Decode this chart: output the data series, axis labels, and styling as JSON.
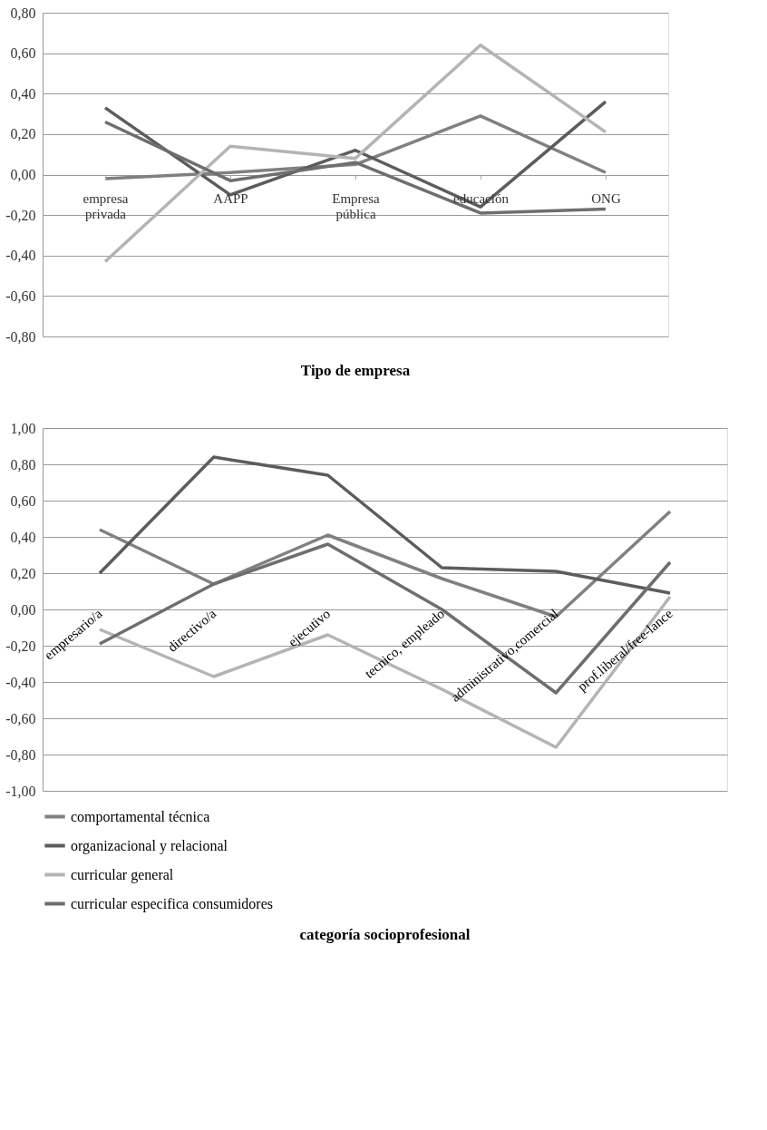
{
  "chart_data": [
    {
      "type": "line",
      "xlabel": "Tipo de empresa",
      "categories": [
        "empresa privada",
        "AAPP",
        "Empresa pública",
        "educación",
        "ONG"
      ],
      "series": [
        {
          "color": "#808080",
          "values": [
            -0.02,
            0.01,
            0.05,
            0.29,
            0.01
          ]
        },
        {
          "color": "#5c5c5c",
          "values": [
            0.33,
            -0.1,
            0.12,
            -0.16,
            0.36
          ]
        },
        {
          "color": "#b4b4b4",
          "values": [
            -0.43,
            0.14,
            0.08,
            0.64,
            0.21
          ]
        },
        {
          "color": "#6e6e6e",
          "values": [
            0.26,
            -0.03,
            0.06,
            -0.19,
            -0.17
          ]
        }
      ],
      "ylim": [
        -0.8,
        0.8
      ],
      "yticks": [
        {
          "value": -0.8,
          "label": "-0,80"
        },
        {
          "value": -0.6,
          "label": "-0,60"
        },
        {
          "value": -0.4,
          "label": "-0,40"
        },
        {
          "value": -0.2,
          "label": "-0,20"
        },
        {
          "value": 0,
          "label": "0,00"
        },
        {
          "value": 0.2,
          "label": "0,20"
        },
        {
          "value": 0.4,
          "label": "0,40"
        },
        {
          "value": 0.6,
          "label": "0,60"
        },
        {
          "value": 0.8,
          "label": "0,80"
        }
      ],
      "grid": "y",
      "legend": false,
      "line_style": "solid",
      "marker": "none"
    },
    {
      "type": "line",
      "xlabel": "categoría socioprofesional",
      "categories": [
        "empresario/a",
        "directivo/a",
        "ejecutivo",
        "tecnico, empleado",
        "administrativo,comercial",
        "prof.liberal/free-lance"
      ],
      "series": [
        {
          "name": "comportamental técnica",
          "color": "#808080",
          "values": [
            0.44,
            0.14,
            0.41,
            0.17,
            -0.04,
            0.54
          ]
        },
        {
          "name": "organizacional y relacional",
          "color": "#5c5c5c",
          "values": [
            0.2,
            0.84,
            0.74,
            0.23,
            0.21,
            0.09
          ]
        },
        {
          "name": "curricular general",
          "color": "#b4b4b4",
          "values": [
            -0.11,
            -0.37,
            -0.14,
            -0.44,
            -0.76,
            0.07
          ]
        },
        {
          "name": "curricular especifica consumidores",
          "color": "#6e6e6e",
          "values": [
            -0.19,
            0.14,
            0.36,
            0.0,
            -0.46,
            0.26
          ]
        }
      ],
      "ylim": [
        -1,
        1
      ],
      "yticks": [
        {
          "value": -1,
          "label": "-1,00"
        },
        {
          "value": -0.8,
          "label": "-0,80"
        },
        {
          "value": -0.6,
          "label": "-0,60"
        },
        {
          "value": -0.4,
          "label": "-0,40"
        },
        {
          "value": -0.2,
          "label": "-0,20"
        },
        {
          "value": 0,
          "label": "0,00"
        },
        {
          "value": 0.2,
          "label": "0,20"
        },
        {
          "value": 0.4,
          "label": "0,40"
        },
        {
          "value": 0.6,
          "label": "0,60"
        },
        {
          "value": 0.8,
          "label": "0,80"
        },
        {
          "value": 1,
          "label": "1,00"
        }
      ],
      "grid": "y",
      "legend": "bottom",
      "line_style": "solid",
      "marker": "none"
    }
  ]
}
